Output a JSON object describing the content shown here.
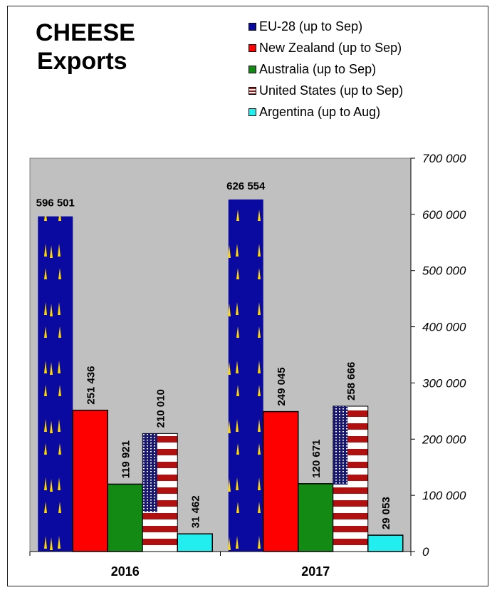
{
  "chart_data": {
    "type": "bar",
    "title_lines": [
      "CHEESE",
      "Exports"
    ],
    "categories": [
      "2016",
      "2017"
    ],
    "series": [
      {
        "name": "EU-28 (up to Sep)",
        "color": "#0A0AA0",
        "fill": "eu-flag",
        "values": [
          596501,
          626554
        ]
      },
      {
        "name": "New Zealand (up to Sep)",
        "color": "#FF0000",
        "fill": "solid",
        "values": [
          251436,
          249045
        ]
      },
      {
        "name": "Australia (up to Sep)",
        "color": "#138A13",
        "fill": "solid",
        "values": [
          119921,
          120671
        ]
      },
      {
        "name": "United States (up to Sep)",
        "color": "#B01010",
        "fill": "us-flag",
        "values": [
          210010,
          258666
        ]
      },
      {
        "name": "Argentina (up to Aug)",
        "color": "#22EEF0",
        "fill": "solid",
        "values": [
          31462,
          29053
        ]
      }
    ],
    "value_labels": [
      [
        "596 501",
        "251 436",
        "119 921",
        "210 010",
        "31 462"
      ],
      [
        "626 554",
        "249 045",
        "120 671",
        "258 666",
        "29 053"
      ]
    ],
    "y_ticks": [
      0,
      100000,
      200000,
      300000,
      400000,
      500000,
      600000,
      700000
    ],
    "y_tick_labels": [
      "0",
      "100 000",
      "200 000",
      "300 000",
      "400 000",
      "500 000",
      "600 000",
      "700 000"
    ],
    "ylim": [
      0,
      700000
    ],
    "y_axis_side": "right",
    "legend_position": "top-right",
    "grid": false,
    "plot_background": "#C0C0C0",
    "xlabel": "",
    "ylabel": ""
  }
}
